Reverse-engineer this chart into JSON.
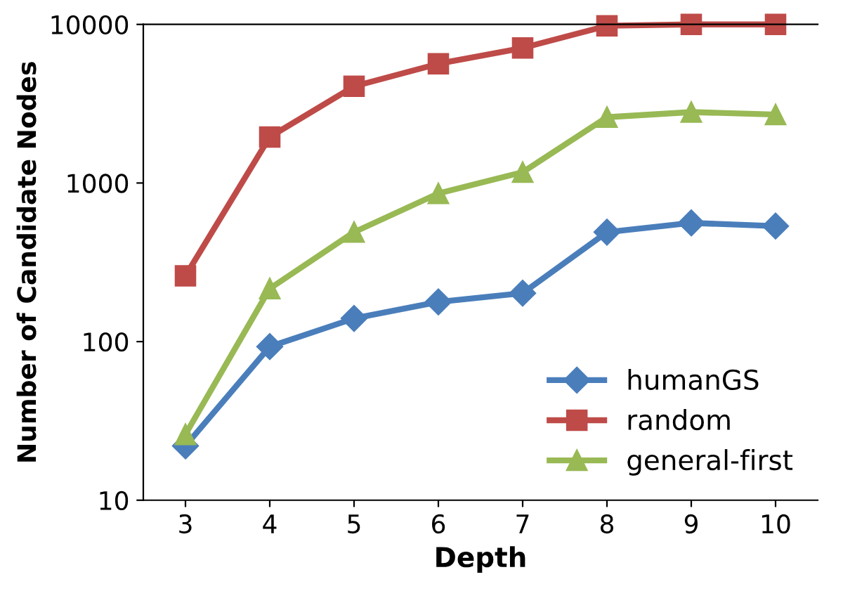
{
  "chart_data": {
    "type": "line",
    "xlabel": "Depth",
    "ylabel": "Number of Candidate Nodes",
    "categories": [
      "3",
      "4",
      "5",
      "6",
      "7",
      "8",
      "9",
      "10"
    ],
    "series": [
      {
        "name": "humanGS",
        "color": "#4a7ebb",
        "marker": "diamond",
        "values": [
          22,
          93,
          140,
          178,
          202,
          490,
          560,
          535
        ]
      },
      {
        "name": "random",
        "color": "#be4b48",
        "marker": "square",
        "values": [
          260,
          1950,
          4070,
          5650,
          7100,
          9800,
          10000,
          10000
        ]
      },
      {
        "name": "general-first",
        "color": "#98b954",
        "marker": "triangle",
        "values": [
          26,
          216,
          490,
          860,
          1170,
          2600,
          2800,
          2700
        ]
      }
    ],
    "log": true,
    "ylim": [
      10,
      10000
    ],
    "yticks": [
      10,
      100,
      1000,
      10000
    ],
    "grid": false,
    "legend": "bottom right"
  }
}
